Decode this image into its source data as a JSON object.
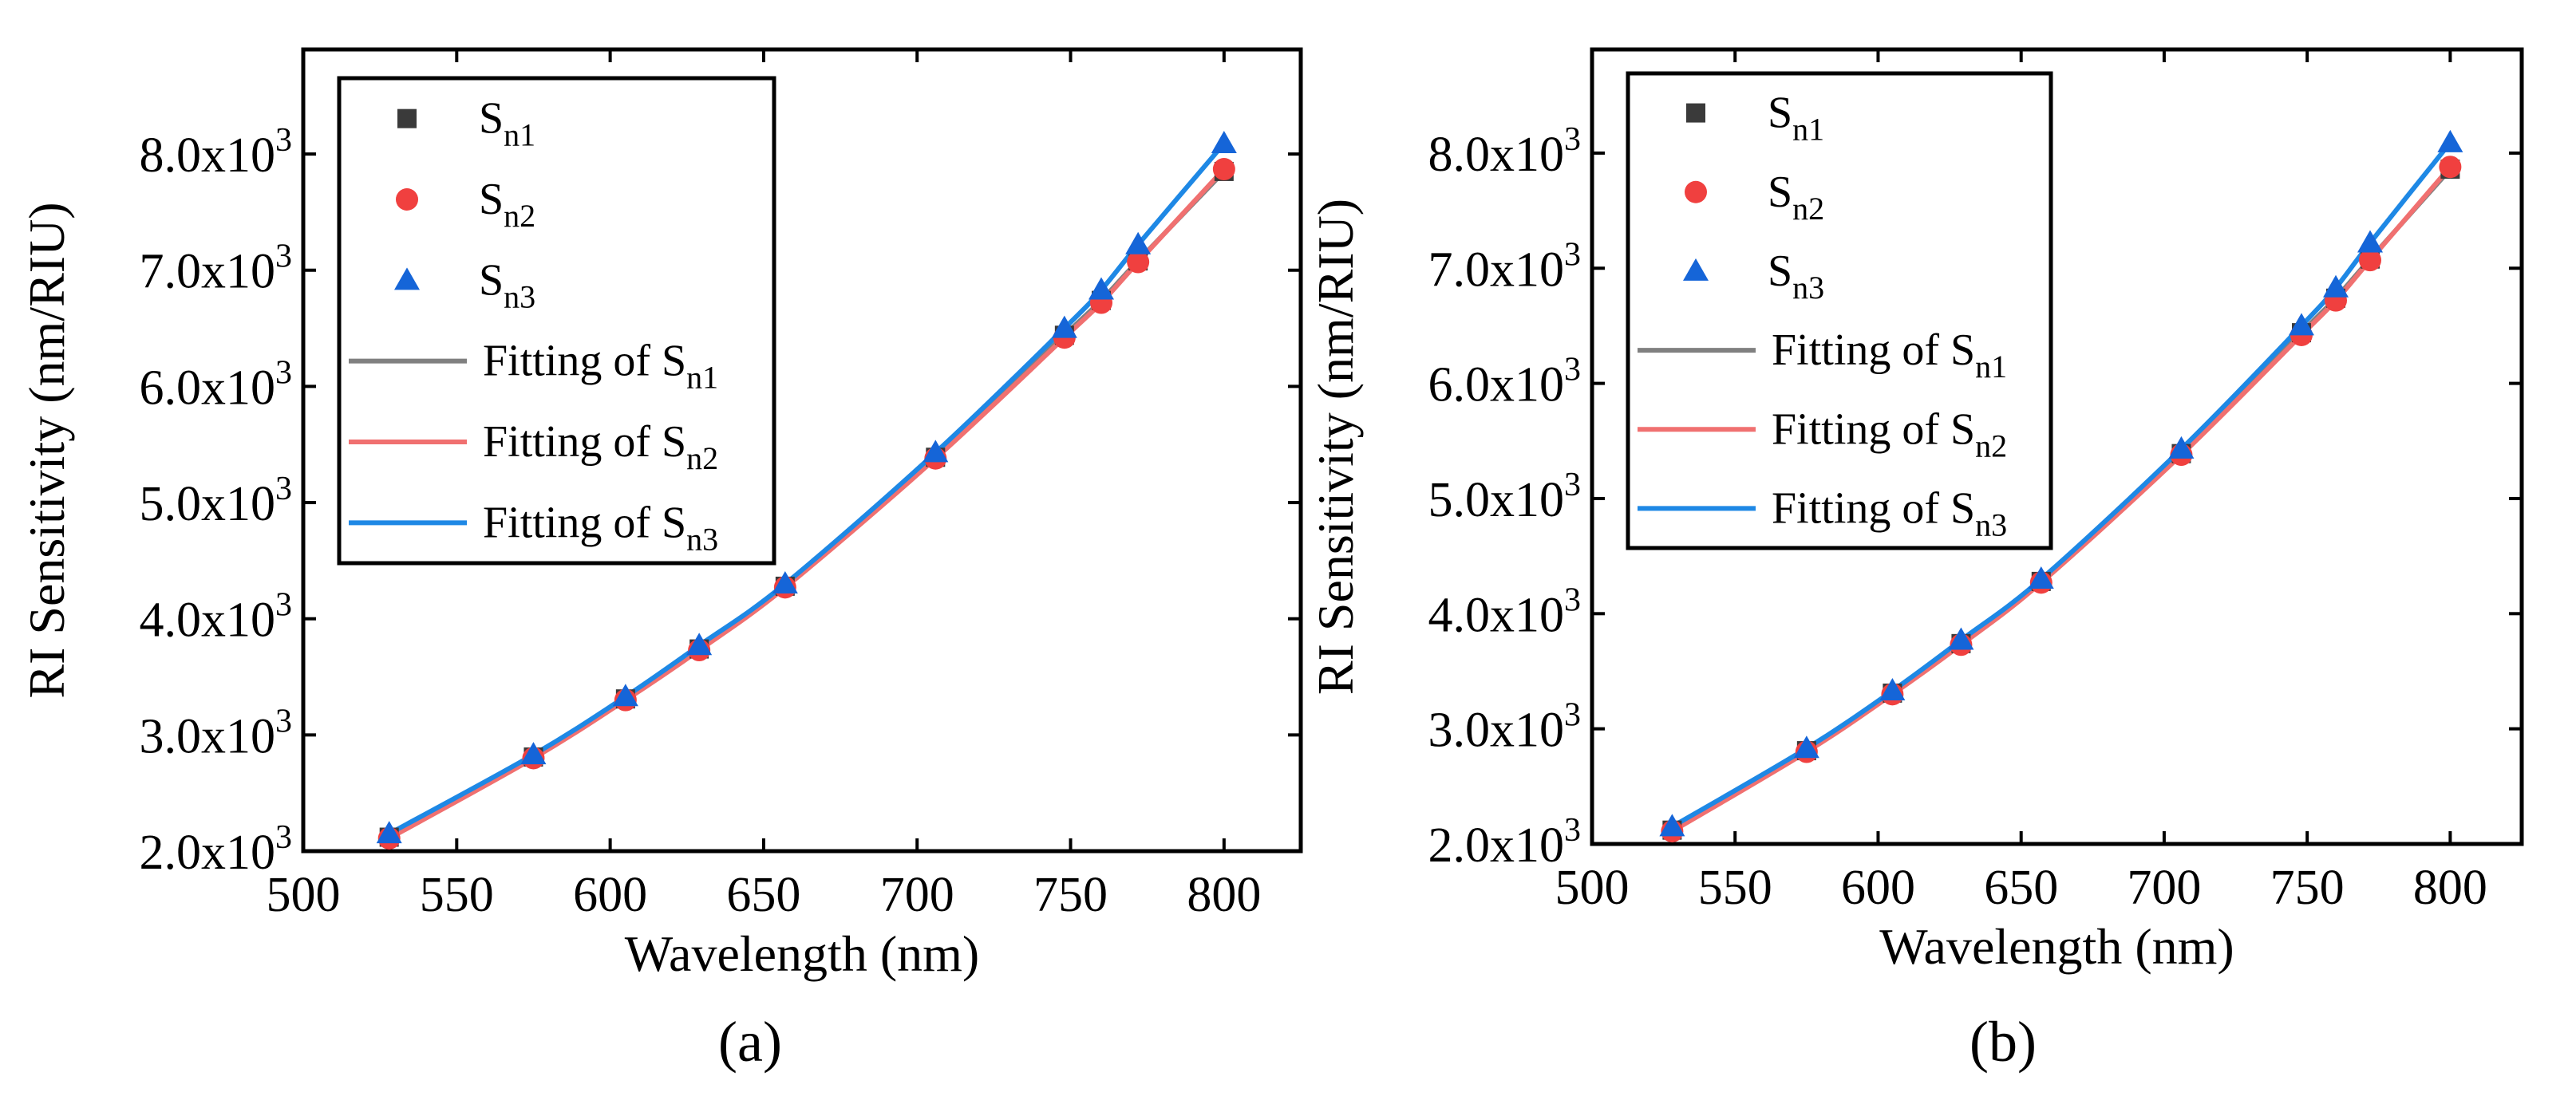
{
  "figure": {
    "panel_labels": [
      "(a)",
      "(b)"
    ]
  },
  "series_styles": [
    {
      "name": "Sn1",
      "marker": "square",
      "marker_color": "#3a3a3a",
      "fit_color": "#808080"
    },
    {
      "name": "Sn2",
      "marker": "circle",
      "marker_color": "#f0403f",
      "fit_color": "#f07070"
    },
    {
      "name": "Sn3",
      "marker": "triangle",
      "marker_color": "#1565d8",
      "fit_color": "#1e88e5"
    }
  ],
  "legend": {
    "entries": [
      {
        "prefix": "S",
        "sub": "n1"
      },
      {
        "prefix": "S",
        "sub": "n2"
      },
      {
        "prefix": "S",
        "sub": "n3"
      },
      {
        "prefix": "Fitting of S",
        "sub": "n1"
      },
      {
        "prefix": "Fitting of S",
        "sub": "n2"
      },
      {
        "prefix": "Fitting of S",
        "sub": "n3"
      }
    ]
  },
  "chart_data": [
    {
      "type": "scatter",
      "panel": "(a)",
      "xlabel": "Wavelength (nm)",
      "ylabel": "RI Sensitivity (nm/RIU)",
      "xlim": [
        500,
        825
      ],
      "ylim": [
        2000,
        8900
      ],
      "xticks": [
        500,
        550,
        600,
        650,
        700,
        750,
        800
      ],
      "yticks": [
        2000,
        3000,
        4000,
        5000,
        6000,
        7000,
        8000
      ],
      "ytick_labels": [
        {
          "mantissa": "2.0x10",
          "exp": "3"
        },
        {
          "mantissa": "3.0x10",
          "exp": "3"
        },
        {
          "mantissa": "4.0x10",
          "exp": "3"
        },
        {
          "mantissa": "5.0x10",
          "exp": "3"
        },
        {
          "mantissa": "6.0x10",
          "exp": "3"
        },
        {
          "mantissa": "7.0x10",
          "exp": "3"
        },
        {
          "mantissa": "8.0x10",
          "exp": "3"
        }
      ],
      "x": [
        528,
        575,
        605,
        629,
        657,
        706,
        748,
        760,
        772,
        800
      ],
      "series": [
        {
          "name": "Sn1",
          "values": [
            2120,
            2810,
            3310,
            3740,
            4280,
            5390,
            6440,
            6740,
            7080,
            7850
          ]
        },
        {
          "name": "Sn2",
          "values": [
            2110,
            2800,
            3300,
            3730,
            4270,
            5380,
            6420,
            6720,
            7070,
            7870
          ]
        },
        {
          "name": "Sn3",
          "values": [
            2150,
            2830,
            3330,
            3770,
            4300,
            5430,
            6500,
            6830,
            7220,
            8090
          ]
        }
      ],
      "grid": false,
      "legend_position": "top-left"
    },
    {
      "type": "scatter",
      "panel": "(b)",
      "xlabel": "Wavelength (nm)",
      "ylabel": "RI Sensitivity (nm/RIU)",
      "xlim": [
        500,
        825
      ],
      "ylim": [
        2000,
        8900
      ],
      "xticks": [
        500,
        550,
        600,
        650,
        700,
        750,
        800
      ],
      "yticks": [
        2000,
        3000,
        4000,
        5000,
        6000,
        7000,
        8000
      ],
      "ytick_labels": [
        {
          "mantissa": "2.0x10",
          "exp": "3"
        },
        {
          "mantissa": "3.0x10",
          "exp": "3"
        },
        {
          "mantissa": "4.0x10",
          "exp": "3"
        },
        {
          "mantissa": "5.0x10",
          "exp": "3"
        },
        {
          "mantissa": "6.0x10",
          "exp": "3"
        },
        {
          "mantissa": "7.0x10",
          "exp": "3"
        },
        {
          "mantissa": "8.0x10",
          "exp": "3"
        }
      ],
      "x": [
        528,
        575,
        605,
        629,
        657,
        706,
        748,
        760,
        772,
        800
      ],
      "series": [
        {
          "name": "Sn1",
          "values": [
            2120,
            2810,
            3310,
            3740,
            4280,
            5390,
            6440,
            6740,
            7080,
            7860
          ]
        },
        {
          "name": "Sn2",
          "values": [
            2110,
            2800,
            3300,
            3730,
            4270,
            5380,
            6420,
            6720,
            7070,
            7880
          ]
        },
        {
          "name": "Sn3",
          "values": [
            2150,
            2830,
            3330,
            3770,
            4300,
            5430,
            6500,
            6830,
            7220,
            8090
          ]
        }
      ],
      "grid": false,
      "legend_position": "top-left"
    }
  ]
}
